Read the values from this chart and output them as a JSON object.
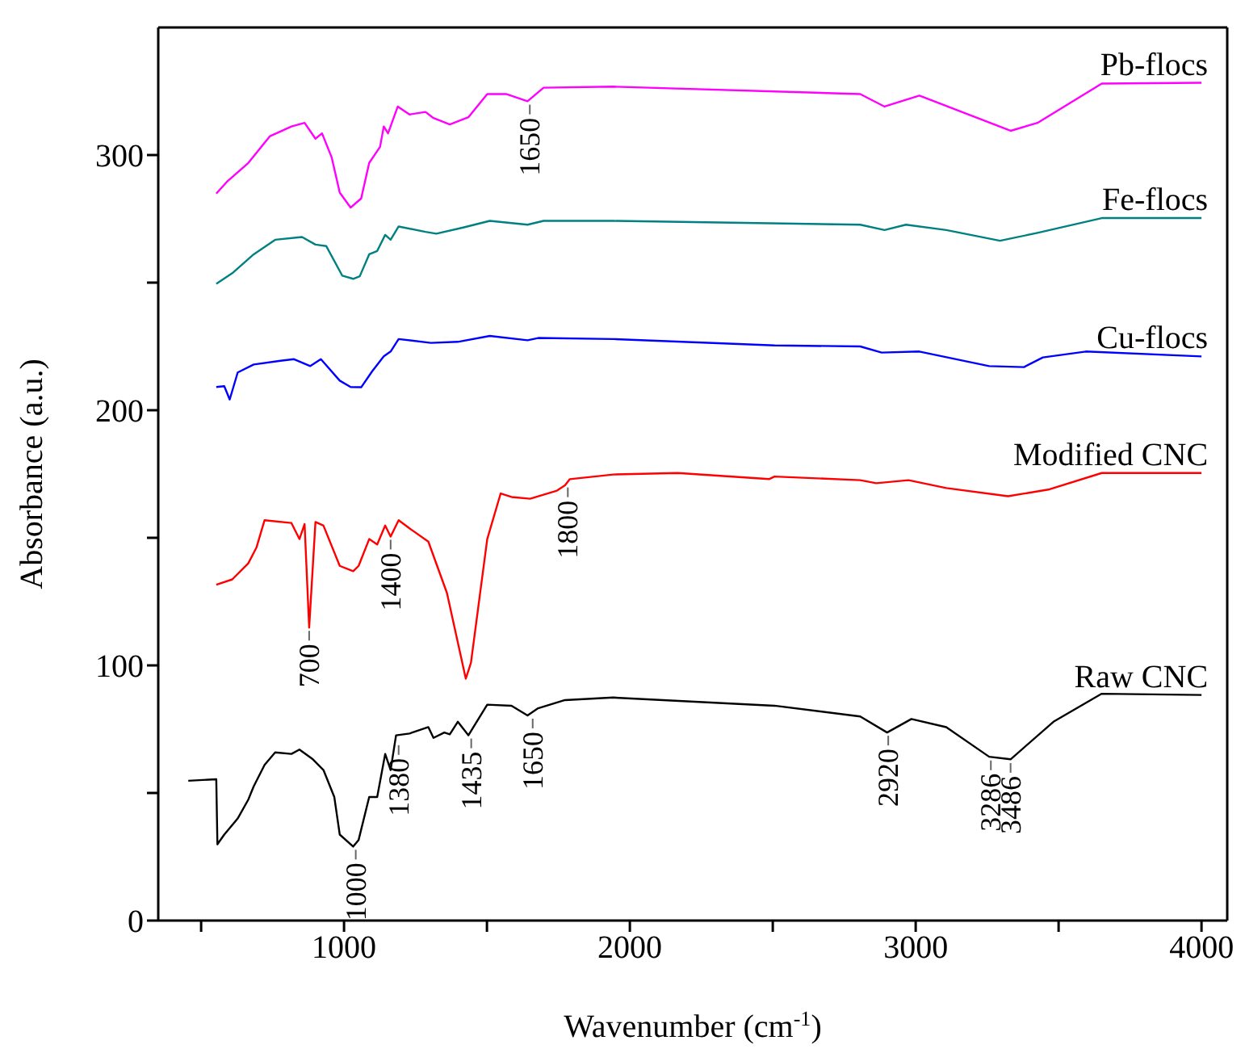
{
  "chart_data": {
    "type": "line",
    "xlabel": "Wavenumber (cm$^{-1}$)",
    "ylabel": "Absorbance (a.u.)",
    "xlim": [
      350,
      4090
    ],
    "ylim": [
      0,
      350
    ],
    "xticks": [
      {
        "value": 500,
        "label": null
      },
      1000,
      {
        "value": 1500,
        "label": null
      },
      2000,
      {
        "value": 2500,
        "label": null
      },
      3000,
      {
        "value": 3500,
        "label": null
      },
      4000
    ],
    "yticks": [
      0,
      {
        "value": 50,
        "label": null
      },
      100,
      {
        "value": 150,
        "label": null
      },
      200,
      {
        "value": 250,
        "label": null
      },
      300
    ],
    "grid": false,
    "legend": false,
    "marker": "none",
    "line_style": "solid",
    "series": [
      {
        "name": "Pb-flocs",
        "color": "#ff00ff",
        "x": [
          553,
          590,
          665,
          741,
          816,
          862,
          900,
          923,
          957,
          985,
          1023,
          1060,
          1088,
          1126,
          1139,
          1154,
          1188,
          1229,
          1285,
          1313,
          1370,
          1435,
          1501,
          1567,
          1642,
          1698,
          1942,
          2806,
          2891,
          3013,
          3332,
          3426,
          3651,
          4000
        ],
        "values": [
          284.9,
          289.5,
          296.9,
          307.4,
          311.2,
          312.6,
          306.4,
          308.5,
          299,
          285.3,
          279.4,
          283,
          296.9,
          303.2,
          311.2,
          308.5,
          319,
          315.9,
          316.9,
          314.5,
          312,
          314.8,
          323.9,
          323.9,
          321.1,
          326.4,
          326.8,
          323.9,
          319,
          323.3,
          309.5,
          312.6,
          328,
          328.3
        ]
      },
      {
        "name": "Fe-flocs",
        "color": "#008080",
        "x": [
          553,
          609,
          684,
          759,
          853,
          900,
          938,
          994,
          1032,
          1055,
          1088,
          1116,
          1144,
          1163,
          1191,
          1285,
          1323,
          1417,
          1510,
          1642,
          1698,
          1942,
          2806,
          2891,
          2966,
          3107,
          3295,
          3426,
          3651,
          4000
        ],
        "values": [
          249.5,
          253.7,
          261.1,
          266.8,
          267.9,
          264.9,
          264.3,
          252.7,
          251.5,
          252.5,
          261.1,
          262.4,
          268.7,
          266.8,
          272,
          269.9,
          269.2,
          271.6,
          274.2,
          272.7,
          274.2,
          274.2,
          272.7,
          270.6,
          272.7,
          270.6,
          266.4,
          269.5,
          275.3,
          275.3
        ]
      },
      {
        "name": "Cu-flocs",
        "color": "#0000ff",
        "x": [
          553,
          581,
          600,
          628,
          684,
          778,
          825,
          882,
          919,
          985,
          1023,
          1060,
          1098,
          1139,
          1163,
          1191,
          1304,
          1398,
          1510,
          1642,
          1679,
          1942,
          2506,
          2806,
          2881,
          3013,
          3257,
          3379,
          3445,
          3595,
          4000
        ],
        "values": [
          209.1,
          209.4,
          204.2,
          214.8,
          217.9,
          219.4,
          220,
          217.3,
          220,
          211.6,
          209.1,
          209,
          215.2,
          221.1,
          223,
          227.9,
          226.4,
          226.8,
          229.1,
          227.4,
          228.3,
          227.9,
          225.4,
          225,
          222.6,
          223,
          217.3,
          216.9,
          220.7,
          223,
          221.1
        ]
      },
      {
        "name": "Modified CNC",
        "color": "#ff0000",
        "x": [
          553,
          609,
          665,
          694,
          722,
          816,
          844,
          862,
          878,
          900,
          928,
          985,
          1032,
          1051,
          1088,
          1116,
          1144,
          1163,
          1191,
          1229,
          1295,
          1360,
          1426,
          1444,
          1501,
          1548,
          1586,
          1651,
          1745,
          1773,
          1790,
          1942,
          2168,
          2487,
          2506,
          2806,
          2862,
          2975,
          3107,
          3323,
          3464,
          3651,
          4000
        ],
        "values": [
          131.6,
          133.7,
          140,
          146.3,
          156.9,
          155.8,
          149.5,
          155.4,
          114.8,
          156.2,
          154.8,
          139,
          136.9,
          139,
          149.5,
          147.4,
          154.8,
          150.5,
          156.9,
          153.7,
          148.5,
          128.4,
          94.8,
          101,
          149.5,
          167.4,
          166,
          165.3,
          168.5,
          170.6,
          173,
          174.8,
          175.4,
          173,
          174,
          172.6,
          171.4,
          172.6,
          169.5,
          166.3,
          168.9,
          175.4,
          175.4
        ]
      },
      {
        "name": "Raw CNC",
        "color": "#000000",
        "x": [
          455,
          553,
          557,
          581,
          628,
          665,
          684,
          722,
          759,
          816,
          844,
          891,
          928,
          966,
          985,
          1032,
          1051,
          1088,
          1116,
          1144,
          1163,
          1182,
          1229,
          1295,
          1313,
          1351,
          1370,
          1398,
          1435,
          1501,
          1586,
          1642,
          1679,
          1773,
          1942,
          2506,
          2806,
          2900,
          2985,
          3107,
          3257,
          3332,
          3482,
          3651,
          4000
        ],
        "values": [
          54.8,
          55.4,
          29.9,
          33.7,
          40,
          47.4,
          52.6,
          61,
          65.9,
          65.3,
          67,
          63.2,
          59,
          48.4,
          33.7,
          29,
          31.6,
          48.4,
          48.4,
          65.3,
          59,
          72.6,
          73.3,
          75.8,
          71.6,
          73.7,
          73,
          77.9,
          72.6,
          84.6,
          84.2,
          80.4,
          83.2,
          86.4,
          87.4,
          84.2,
          80,
          73.7,
          79,
          75.8,
          64.2,
          63.2,
          77.9,
          88.9,
          88.4
        ]
      }
    ],
    "annotations": [
      {
        "text": "1650",
        "x": 1650,
        "y": 321
      },
      {
        "text": "700",
        "x": 878,
        "y": 114.8
      },
      {
        "text": "1400",
        "x": 1163,
        "y": 150.5
      },
      {
        "text": "1800",
        "x": 1783,
        "y": 171
      },
      {
        "text": "1000",
        "x": 1041,
        "y": 29
      },
      {
        "text": "1380",
        "x": 1191,
        "y": 70
      },
      {
        "text": "1435",
        "x": 1445,
        "y": 72.6
      },
      {
        "text": "1650",
        "x": 1660,
        "y": 80.4
      },
      {
        "text": "2920",
        "x": 2904,
        "y": 73.7
      },
      {
        "text": "3286",
        "x": 3263,
        "y": 64
      },
      {
        "text": "3486",
        "x": 3332,
        "y": 63
      }
    ]
  }
}
